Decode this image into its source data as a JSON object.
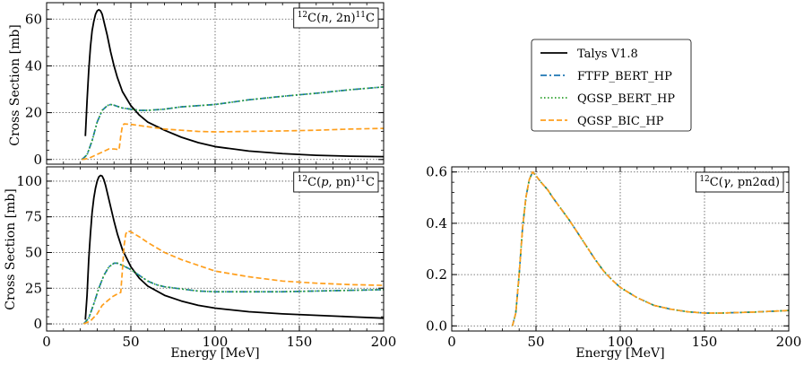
{
  "figure": {
    "xlabel": "Energy [MeV]",
    "ylabel": "Cross Section [mb]"
  },
  "legend": {
    "position": "right-middle",
    "entries": [
      {
        "label": "Talys V1.8",
        "color": "#000000",
        "style": "solid"
      },
      {
        "label": "FTFP_BERT_HP",
        "color": "#1f77b4",
        "style": "dashdot"
      },
      {
        "label": "QGSP_BERT_HP",
        "color": "#2ca02c",
        "style": "dotted"
      },
      {
        "label": "QGSP_BIC_HP",
        "color": "#ff9f1c",
        "style": "dashed"
      }
    ]
  },
  "chart_data": [
    {
      "type": "line",
      "id": "n2n",
      "annotation": {
        "prefix": "12",
        "mid1": "C(",
        "italic": "n",
        "mid2": ", 2n)",
        "sup2": "11",
        "suffix": "C"
      },
      "xlim": [
        0,
        200
      ],
      "ylim": [
        -2,
        67
      ],
      "xticks": [
        0,
        50,
        100,
        150,
        200
      ],
      "yticks": [
        0,
        20,
        40,
        60
      ],
      "show_xtick_labels": false,
      "grid": true,
      "series": [
        {
          "name": "Talys V1.8",
          "color": "#000000",
          "dash": "solid",
          "x": [
            23,
            24,
            25,
            26,
            27,
            28,
            29,
            30,
            31,
            32,
            33,
            34,
            36,
            38,
            40,
            42,
            45,
            50,
            55,
            60,
            70,
            80,
            90,
            100,
            120,
            140,
            160,
            180,
            200
          ],
          "y": [
            10,
            25,
            38,
            48,
            55,
            59,
            62,
            63.5,
            64,
            63.5,
            62,
            59,
            53,
            46,
            40,
            35,
            29,
            23,
            19,
            16,
            12.5,
            9.5,
            7.2,
            5.5,
            3.6,
            2.5,
            1.8,
            1.4,
            1.2
          ]
        },
        {
          "name": "FTFP_BERT_HP",
          "color": "#1f77b4",
          "dash": "7 3 2 3",
          "x": [
            21,
            24,
            27,
            30,
            33,
            36,
            38,
            40,
            45,
            50,
            55,
            60,
            70,
            80,
            90,
            100,
            120,
            140,
            160,
            180,
            200
          ],
          "y": [
            0,
            2,
            8,
            16,
            21,
            23,
            23.5,
            23.2,
            22,
            21.5,
            21,
            21,
            21.5,
            22.5,
            23,
            23.5,
            25.5,
            27,
            28.3,
            29.8,
            31
          ]
        },
        {
          "name": "QGSP_BERT_HP",
          "color": "#2ca02c",
          "dash": "1.5 2.5",
          "x": [
            21,
            24,
            27,
            30,
            33,
            36,
            38,
            40,
            45,
            50,
            55,
            60,
            70,
            80,
            90,
            100,
            120,
            140,
            160,
            180,
            200
          ],
          "y": [
            0,
            2,
            8,
            16,
            21,
            23,
            23.5,
            23.2,
            22,
            21.5,
            21,
            21,
            21.5,
            22.5,
            23,
            23.5,
            25.5,
            27,
            28.3,
            29.8,
            31
          ]
        },
        {
          "name": "QGSP_BIC_HP",
          "color": "#ff9f1c",
          "dash": "6 3",
          "x": [
            21,
            25,
            28,
            31,
            34,
            37,
            40,
            43,
            44,
            45,
            46,
            50,
            55,
            60,
            70,
            80,
            90,
            100,
            120,
            140,
            160,
            180,
            200
          ],
          "y": [
            0,
            0.5,
            1.5,
            2.5,
            3.5,
            4.5,
            4.5,
            4.2,
            10,
            14.5,
            15.2,
            15,
            14.5,
            14,
            13,
            12.5,
            12,
            11.8,
            12,
            12.2,
            12.5,
            13,
            13.3
          ]
        }
      ]
    },
    {
      "type": "line",
      "id": "ppn",
      "annotation": {
        "prefix": "12",
        "mid1": "C(",
        "italic": "p",
        "mid2": ", pn)",
        "sup2": "11",
        "suffix": "C"
      },
      "xlim": [
        0,
        200
      ],
      "ylim": [
        -5,
        110
      ],
      "xticks": [
        0,
        50,
        100,
        150,
        200
      ],
      "yticks": [
        0,
        25,
        50,
        75,
        100
      ],
      "show_xtick_labels": true,
      "grid": true,
      "series": [
        {
          "name": "Talys V1.8",
          "color": "#000000",
          "dash": "solid",
          "x": [
            23,
            24,
            25,
            26,
            27,
            28,
            29,
            30,
            31,
            32,
            33,
            34,
            35,
            36,
            38,
            40,
            42,
            45,
            50,
            55,
            60,
            70,
            80,
            90,
            100,
            120,
            140,
            160,
            180,
            200
          ],
          "y": [
            3,
            20,
            45,
            63,
            78,
            88,
            95,
            100,
            103,
            104,
            103.5,
            101,
            97,
            92,
            82,
            72,
            63,
            52,
            40,
            32,
            26.5,
            20,
            16,
            13,
            11,
            8.5,
            7,
            6,
            5,
            4
          ]
        },
        {
          "name": "FTFP_BERT_HP",
          "color": "#1f77b4",
          "dash": "7 3 2 3",
          "x": [
            22,
            25,
            28,
            31,
            34,
            37,
            40,
            42,
            45,
            50,
            55,
            60,
            65,
            70,
            80,
            90,
            100,
            120,
            140,
            160,
            180,
            200
          ],
          "y": [
            0,
            4,
            14,
            25,
            34,
            40,
            42.5,
            42.5,
            41,
            38,
            34,
            30,
            27.5,
            26,
            24.5,
            23,
            22.5,
            22.5,
            22.5,
            23,
            23.5,
            24
          ]
        },
        {
          "name": "QGSP_BERT_HP",
          "color": "#2ca02c",
          "dash": "1.5 2.5",
          "x": [
            22,
            25,
            28,
            31,
            34,
            37,
            40,
            42,
            45,
            50,
            55,
            60,
            65,
            70,
            80,
            90,
            100,
            120,
            140,
            160,
            180,
            200
          ],
          "y": [
            0,
            4,
            14,
            25,
            34,
            40,
            42.5,
            42.5,
            41,
            38,
            34,
            30,
            27.5,
            26,
            24.5,
            23,
            22.5,
            22.5,
            22.5,
            23,
            23.5,
            24
          ]
        },
        {
          "name": "QGSP_BIC_HP",
          "color": "#ff9f1c",
          "dash": "6 3",
          "x": [
            22,
            26,
            30,
            33,
            36,
            39,
            42,
            44,
            45,
            46,
            47,
            48,
            50,
            55,
            60,
            70,
            80,
            90,
            100,
            120,
            140,
            160,
            180,
            200
          ],
          "y": [
            0,
            2,
            7,
            13,
            16,
            19,
            21,
            22,
            38,
            55,
            63,
            65,
            64.5,
            61,
            57,
            50,
            45,
            41,
            37,
            33,
            30,
            28.5,
            27.5,
            27
          ]
        }
      ]
    },
    {
      "type": "line",
      "id": "gamma",
      "annotation": {
        "prefix": "12",
        "mid1": "C(",
        "italic": "γ",
        "mid2": ", pn2αd)",
        "sup2": "",
        "suffix": ""
      },
      "xlim": [
        0,
        200
      ],
      "ylim": [
        -0.02,
        0.62
      ],
      "xticks": [
        0,
        50,
        100,
        150,
        200
      ],
      "yticks": [
        0.0,
        0.2,
        0.4,
        0.6
      ],
      "show_xtick_labels": true,
      "grid": true,
      "series": [
        {
          "name": "FTFP_BERT_HP",
          "color": "#1f77b4",
          "dash": "7 3 2 3",
          "x": [
            36,
            38,
            40,
            42,
            44,
            46,
            48,
            50,
            53,
            57,
            60,
            65,
            70,
            75,
            80,
            85,
            90,
            95,
            100,
            110,
            120,
            130,
            140,
            150,
            160,
            170,
            180,
            190,
            200
          ],
          "y": [
            0,
            0.05,
            0.2,
            0.38,
            0.5,
            0.57,
            0.6,
            0.585,
            0.56,
            0.53,
            0.5,
            0.455,
            0.41,
            0.36,
            0.31,
            0.26,
            0.215,
            0.18,
            0.15,
            0.11,
            0.08,
            0.065,
            0.055,
            0.05,
            0.05,
            0.052,
            0.054,
            0.057,
            0.06
          ]
        },
        {
          "name": "QGSP_BERT_HP",
          "color": "#2ca02c",
          "dash": "1.5 2.5",
          "x": [
            36,
            38,
            40,
            42,
            44,
            46,
            48,
            50,
            53,
            57,
            60,
            65,
            70,
            75,
            80,
            85,
            90,
            95,
            100,
            110,
            120,
            130,
            140,
            150,
            160,
            170,
            180,
            190,
            200
          ],
          "y": [
            0,
            0.05,
            0.2,
            0.38,
            0.5,
            0.57,
            0.6,
            0.585,
            0.56,
            0.53,
            0.5,
            0.455,
            0.41,
            0.36,
            0.31,
            0.26,
            0.215,
            0.18,
            0.15,
            0.11,
            0.08,
            0.065,
            0.055,
            0.05,
            0.05,
            0.052,
            0.054,
            0.057,
            0.06
          ]
        },
        {
          "name": "QGSP_BIC_HP",
          "color": "#ff9f1c",
          "dash": "6 3",
          "x": [
            36,
            38,
            40,
            42,
            44,
            46,
            48,
            50,
            53,
            57,
            60,
            65,
            70,
            75,
            80,
            85,
            90,
            95,
            100,
            110,
            120,
            130,
            140,
            150,
            160,
            170,
            180,
            190,
            200
          ],
          "y": [
            0,
            0.05,
            0.2,
            0.38,
            0.5,
            0.57,
            0.6,
            0.585,
            0.56,
            0.53,
            0.5,
            0.455,
            0.41,
            0.36,
            0.31,
            0.26,
            0.215,
            0.18,
            0.15,
            0.11,
            0.08,
            0.065,
            0.055,
            0.05,
            0.05,
            0.052,
            0.054,
            0.057,
            0.06
          ]
        }
      ]
    }
  ]
}
